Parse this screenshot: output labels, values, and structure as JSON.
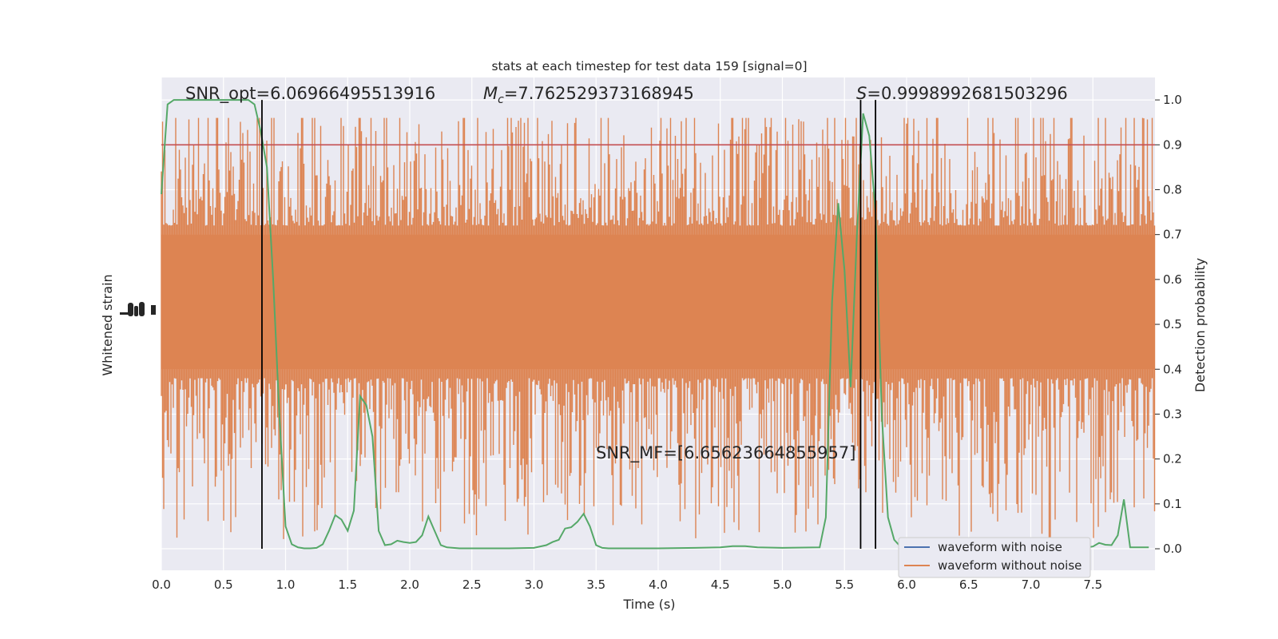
{
  "chart_data": {
    "type": "line",
    "title": "stats at each timestep for test data 159 [signal=0]",
    "xlabel": "Time (s)",
    "ylabel_left": "Whitened strain",
    "ylabel_right": "Detection probability",
    "xlim": [
      0.0,
      8.0
    ],
    "ylim_right": [
      -0.048,
      1.05
    ],
    "x_ticks": [
      "0.0",
      "0.5",
      "1.0",
      "1.5",
      "2.0",
      "2.5",
      "3.0",
      "3.5",
      "4.0",
      "4.5",
      "5.0",
      "5.5",
      "6.0",
      "6.5",
      "7.0",
      "7.5"
    ],
    "y_ticks_right": [
      "0.0",
      "0.1",
      "0.2",
      "0.3",
      "0.4",
      "0.5",
      "0.6",
      "0.7",
      "0.8",
      "0.9",
      "1.0"
    ],
    "grid": true,
    "legend_position": "bottom-right",
    "legend": [
      {
        "label": "waveform with noise",
        "color": "#4c72b0"
      },
      {
        "label": "waveform without noise",
        "color": "#dd8452"
      }
    ],
    "annotations": {
      "snr_opt": "SNR_opt=6.06966495513916",
      "mc_symbol": "M",
      "mc_sub": "c",
      "mc_value": "=7.762529373168945",
      "s_symbol": "S",
      "s_value": "=0.9998992681503296",
      "snr_mf": "SNR_MF=[6.65623664855957]"
    },
    "threshold": {
      "y": 0.9,
      "color": "#c44e52"
    },
    "vertical_lines": [
      0.81,
      5.63,
      5.75
    ],
    "strain_band": {
      "core_range": [
        0.4,
        0.7
      ],
      "peak_range": [
        0.0,
        0.96
      ],
      "color": "#dd8452"
    },
    "probability_series": {
      "name": "",
      "color": "#55a868",
      "x": [
        0.0,
        0.05,
        0.1,
        0.2,
        0.3,
        0.4,
        0.5,
        0.6,
        0.7,
        0.75,
        0.8,
        0.85,
        0.9,
        0.95,
        1.0,
        1.05,
        1.1,
        1.15,
        1.2,
        1.25,
        1.3,
        1.35,
        1.4,
        1.45,
        1.5,
        1.55,
        1.6,
        1.65,
        1.7,
        1.75,
        1.8,
        1.85,
        1.9,
        1.95,
        2.0,
        2.05,
        2.1,
        2.15,
        2.2,
        2.25,
        2.3,
        2.35,
        2.4,
        2.45,
        2.5,
        2.6,
        2.8,
        3.0,
        3.1,
        3.15,
        3.2,
        3.25,
        3.3,
        3.35,
        3.4,
        3.45,
        3.5,
        3.55,
        3.6,
        3.8,
        4.0,
        4.3,
        4.5,
        4.6,
        4.7,
        4.8,
        5.0,
        5.3,
        5.35,
        5.4,
        5.45,
        5.5,
        5.55,
        5.6,
        5.65,
        5.7,
        5.75,
        5.8,
        5.85,
        5.9,
        5.95,
        6.0,
        6.2,
        6.5,
        7.0,
        7.3,
        7.45,
        7.5,
        7.55,
        7.6,
        7.65,
        7.7,
        7.75,
        7.8,
        7.85,
        7.9,
        7.95
      ],
      "y": [
        0.79,
        0.99,
        1.0,
        1.0,
        1.0,
        1.0,
        1.0,
        1.0,
        1.0,
        0.99,
        0.93,
        0.85,
        0.6,
        0.3,
        0.05,
        0.01,
        0.003,
        0.001,
        0.001,
        0.002,
        0.01,
        0.04,
        0.075,
        0.065,
        0.04,
        0.085,
        0.34,
        0.32,
        0.25,
        0.04,
        0.008,
        0.01,
        0.018,
        0.015,
        0.013,
        0.015,
        0.03,
        0.072,
        0.04,
        0.008,
        0.003,
        0.002,
        0.001,
        0.001,
        0.001,
        0.001,
        0.001,
        0.002,
        0.008,
        0.015,
        0.02,
        0.045,
        0.048,
        0.06,
        0.078,
        0.05,
        0.008,
        0.002,
        0.001,
        0.001,
        0.001,
        0.002,
        0.003,
        0.006,
        0.006,
        0.003,
        0.002,
        0.003,
        0.07,
        0.55,
        0.77,
        0.62,
        0.36,
        0.7,
        0.97,
        0.92,
        0.75,
        0.3,
        0.07,
        0.02,
        0.005,
        0.003,
        0.003,
        0.003,
        0.003,
        0.003,
        0.003,
        0.005,
        0.013,
        0.009,
        0.008,
        0.03,
        0.11,
        0.003,
        0.003,
        0.003,
        0.003
      ]
    }
  }
}
